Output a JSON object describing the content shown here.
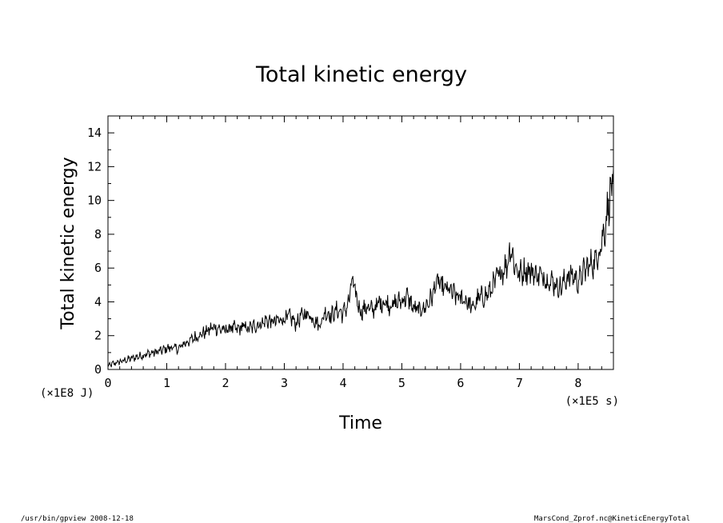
{
  "chart_data": {
    "type": "line",
    "title": "Total kinetic energy",
    "xlabel": "Time",
    "ylabel": "Total kinetic energy",
    "x_unit_label": "(×1E5 s)",
    "y_unit_label": "(×1E8 J)",
    "xlim": [
      0,
      8.6
    ],
    "ylim": [
      0,
      15
    ],
    "x_ticks": [
      0,
      1,
      2,
      3,
      4,
      5,
      6,
      7,
      8
    ],
    "y_ticks": [
      0,
      2,
      4,
      6,
      8,
      10,
      12,
      14
    ],
    "x_tick_labels": [
      "0",
      "1",
      "2",
      "3",
      "4",
      "5",
      "6",
      "7",
      "8"
    ],
    "y_tick_labels": [
      "0",
      "2",
      "4",
      "6",
      "8",
      "10",
      "12",
      "14"
    ],
    "grid": false,
    "legend": "none",
    "series": [
      {
        "color": "#000000",
        "x": [
          0,
          0.1,
          0.2,
          0.3,
          0.4,
          0.5,
          0.6,
          0.7,
          0.8,
          0.9,
          1.0,
          1.1,
          1.2,
          1.3,
          1.4,
          1.5,
          1.6,
          1.7,
          1.8,
          1.9,
          2.0,
          2.1,
          2.2,
          2.3,
          2.4,
          2.5,
          2.6,
          2.7,
          2.8,
          2.9,
          3.0,
          3.1,
          3.2,
          3.3,
          3.4,
          3.5,
          3.6,
          3.7,
          3.8,
          3.9,
          4.0,
          4.1,
          4.15,
          4.2,
          4.3,
          4.4,
          4.5,
          4.6,
          4.7,
          4.8,
          4.9,
          5.0,
          5.1,
          5.2,
          5.3,
          5.4,
          5.5,
          5.6,
          5.7,
          5.8,
          5.9,
          6.0,
          6.1,
          6.2,
          6.3,
          6.4,
          6.5,
          6.6,
          6.7,
          6.8,
          6.85,
          6.9,
          7.0,
          7.1,
          7.2,
          7.3,
          7.4,
          7.5,
          7.6,
          7.7,
          7.8,
          7.9,
          8.0,
          8.1,
          8.2,
          8.3,
          8.4,
          8.45,
          8.5,
          8.55,
          8.6
        ],
        "y": [
          0.2,
          0.35,
          0.45,
          0.55,
          0.65,
          0.75,
          0.85,
          0.95,
          1.0,
          1.1,
          1.25,
          1.3,
          1.2,
          1.55,
          1.7,
          1.95,
          2.1,
          2.3,
          2.5,
          2.4,
          2.3,
          2.5,
          2.35,
          2.55,
          2.4,
          2.6,
          2.7,
          2.9,
          2.8,
          2.9,
          3.0,
          3.1,
          2.7,
          3.2,
          3.3,
          3.0,
          2.6,
          3.4,
          3.2,
          3.5,
          3.3,
          4.0,
          5.3,
          4.6,
          3.4,
          3.7,
          3.5,
          3.9,
          4.0,
          3.8,
          3.9,
          4.1,
          4.3,
          3.6,
          3.5,
          3.7,
          4.2,
          5.2,
          4.8,
          4.7,
          4.4,
          4.2,
          4.1,
          3.6,
          4.2,
          4.3,
          4.6,
          5.3,
          5.8,
          6.3,
          7.4,
          6.4,
          5.6,
          5.9,
          5.8,
          5.6,
          5.5,
          5.3,
          5.1,
          4.8,
          5.4,
          5.6,
          5.2,
          5.8,
          6.2,
          6.4,
          7.6,
          8.3,
          9.5,
          10.5,
          11.1
        ]
      }
    ]
  },
  "footer": {
    "left": "/usr/bin/gpview   2008-12-18",
    "right": "MarsCond_Zprof.nc@KineticEnergyTotal"
  }
}
